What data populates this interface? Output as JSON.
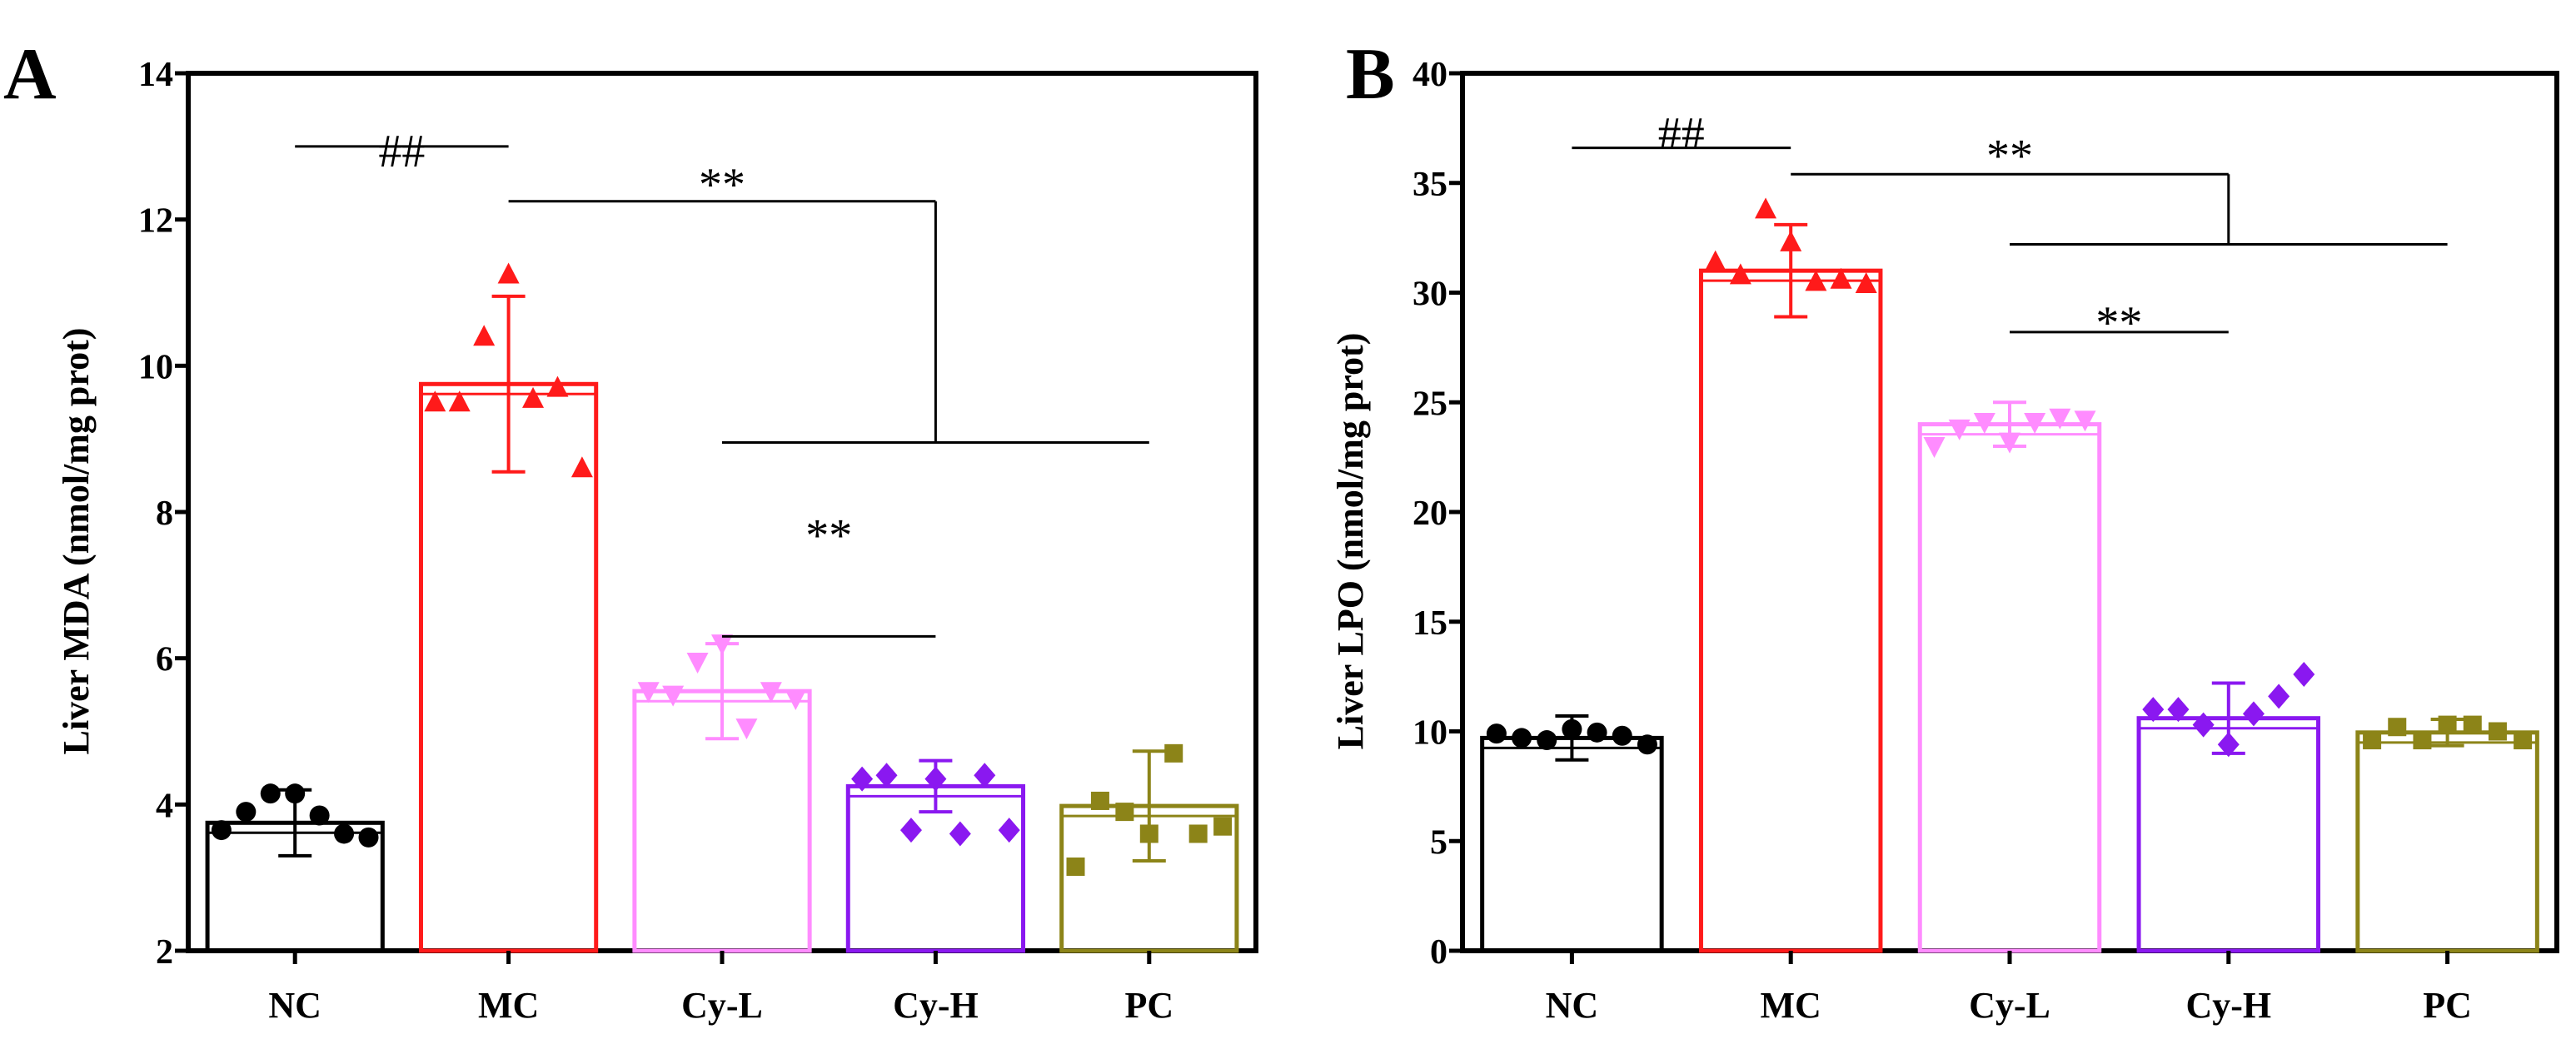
{
  "chart_data": [
    {
      "type": "bar",
      "panel": "A",
      "ylabel": "Liver MDA (nmol/mg prot)",
      "xlabel": "",
      "ylim": [
        2,
        14
      ],
      "yticks": [
        2,
        4,
        6,
        8,
        10,
        12,
        14
      ],
      "categories": [
        "NC",
        "MC",
        "Cy-L",
        "Cy-H",
        "PC"
      ],
      "colors": [
        "#000000",
        "#ff1a1a",
        "#ff8cff",
        "#8a18f0",
        "#8c8418"
      ],
      "markers": [
        "circle",
        "triangle-up",
        "triangle-down",
        "diamond",
        "square"
      ],
      "values": [
        3.75,
        9.75,
        5.55,
        4.25,
        3.98
      ],
      "errors": [
        0.45,
        1.2,
        0.65,
        0.35,
        0.75
      ],
      "points": [
        [
          3.65,
          3.9,
          4.15,
          4.15,
          3.85,
          3.6,
          3.55
        ],
        [
          9.5,
          9.5,
          10.4,
          11.25,
          9.55,
          9.7,
          8.6
        ],
        [
          5.55,
          5.5,
          5.95,
          6.2,
          5.05,
          5.55,
          5.45
        ],
        [
          4.35,
          4.4,
          3.65,
          4.35,
          3.6,
          4.4,
          3.65
        ],
        [
          3.15,
          4.05,
          3.9,
          3.6,
          4.7,
          3.6,
          3.7
        ]
      ],
      "significance": [
        {
          "label": "##",
          "from": 0,
          "to": 1
        },
        {
          "label": "**",
          "from": 1,
          "to_groups": [
            2,
            4
          ]
        },
        {
          "label": "**",
          "from": 2,
          "to": 3
        }
      ]
    },
    {
      "type": "bar",
      "panel": "B",
      "ylabel": "Liver LPO (nmol/mg prot)",
      "xlabel": "",
      "ylim": [
        0,
        40
      ],
      "yticks": [
        0,
        5,
        10,
        15,
        20,
        25,
        30,
        35,
        40
      ],
      "categories": [
        "NC",
        "MC",
        "Cy-L",
        "Cy-H",
        "PC"
      ],
      "colors": [
        "#000000",
        "#ff1a1a",
        "#ff8cff",
        "#8a18f0",
        "#8c8418"
      ],
      "markers": [
        "circle",
        "triangle-up",
        "triangle-down",
        "diamond",
        "square"
      ],
      "values": [
        9.7,
        31.0,
        24.0,
        10.6,
        9.95
      ],
      "errors": [
        1.0,
        2.1,
        1.0,
        1.6,
        0.6
      ],
      "points": [
        [
          9.9,
          9.7,
          9.6,
          10.1,
          9.95,
          9.8,
          9.4
        ],
        [
          31.4,
          30.8,
          33.8,
          32.3,
          30.5,
          30.6,
          30.4
        ],
        [
          23.0,
          23.8,
          24.1,
          23.2,
          24.1,
          24.3,
          24.2
        ],
        [
          11.0,
          11.0,
          10.3,
          9.4,
          10.8,
          11.6,
          12.6
        ],
        [
          9.6,
          10.2,
          9.6,
          10.3,
          10.3,
          10.0,
          9.6
        ]
      ],
      "significance": [
        {
          "label": "##",
          "from": 0,
          "to": 1
        },
        {
          "label": "**",
          "from": 1,
          "to_groups": [
            2,
            4
          ]
        },
        {
          "label": "**",
          "from": 2,
          "to": 3
        }
      ]
    }
  ]
}
